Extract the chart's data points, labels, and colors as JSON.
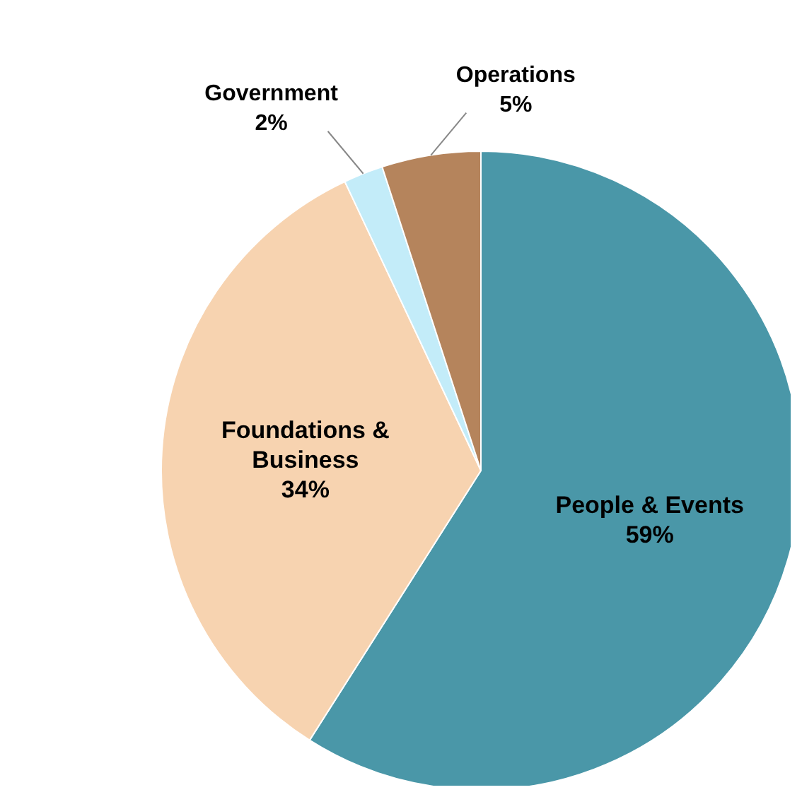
{
  "chart_data": {
    "type": "pie",
    "categories": [
      "People & Events",
      "Foundations & Business",
      "Government",
      "Operations"
    ],
    "values": [
      59,
      34,
      2,
      5
    ],
    "value_labels": [
      "59%",
      "34%",
      "2%",
      "5%"
    ],
    "colors": [
      "#4a97a8",
      "#f7d3b0",
      "#c3ecf9",
      "#b5845c"
    ]
  }
}
